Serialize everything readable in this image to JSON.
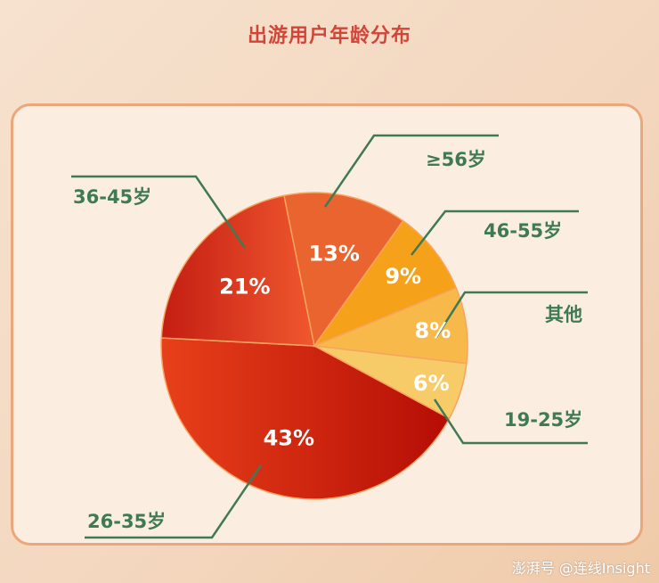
{
  "title": "出游用户年龄分布",
  "watermark": "澎湃号 @连线Insight",
  "chart_data": {
    "type": "pie",
    "title": "出游用户年龄分布",
    "categories": [
      "26-35岁",
      "36-45岁",
      "≥56岁",
      "46-55岁",
      "其他",
      "19-25岁"
    ],
    "values": [
      43,
      21,
      13,
      9,
      8,
      6
    ],
    "data_labels": [
      "43%",
      "21%",
      "13%",
      "9%",
      "8%",
      "6%"
    ],
    "colors": [
      "#c9240f",
      "#e0432a",
      "#e9642e",
      "#f5a21a",
      "#f6b94a",
      "#f7cb68"
    ],
    "label_color": "#3f7a55"
  }
}
